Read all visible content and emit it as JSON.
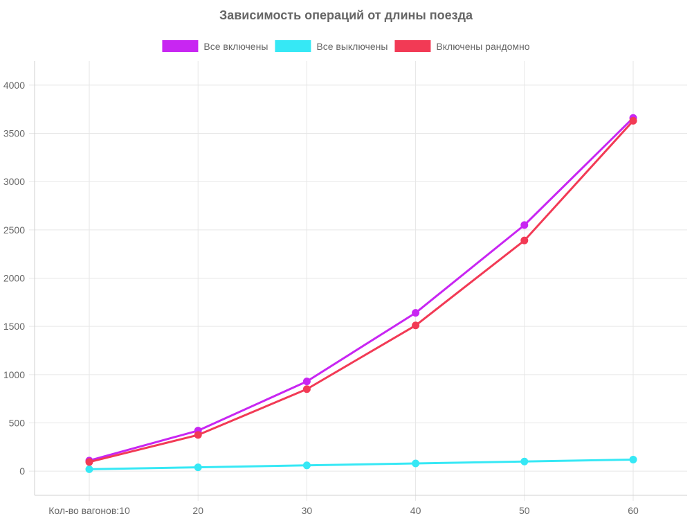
{
  "chart_data": {
    "type": "line",
    "title": "Зависимость операций от длины поезда",
    "xlabel": "",
    "ylabel": "",
    "categories": [
      "Кол-во вагонов:10",
      "20",
      "30",
      "40",
      "50",
      "60"
    ],
    "x": [
      10,
      20,
      30,
      40,
      50,
      60
    ],
    "ylim": [
      -250,
      4250
    ],
    "yticks": [
      0,
      500,
      1000,
      1500,
      2000,
      2500,
      3000,
      3500,
      4000
    ],
    "grid": true,
    "legend_position": "top",
    "series": [
      {
        "name": "Все включены",
        "color": "#c826f2",
        "values": [
          110,
          420,
          930,
          1640,
          2550,
          3660
        ]
      },
      {
        "name": "Все выключены",
        "color": "#36e8f5",
        "values": [
          20,
          40,
          60,
          80,
          100,
          120
        ]
      },
      {
        "name": "Включены рандомно",
        "color": "#f23a55",
        "values": [
          95,
          375,
          850,
          1510,
          2390,
          3630
        ]
      }
    ]
  }
}
